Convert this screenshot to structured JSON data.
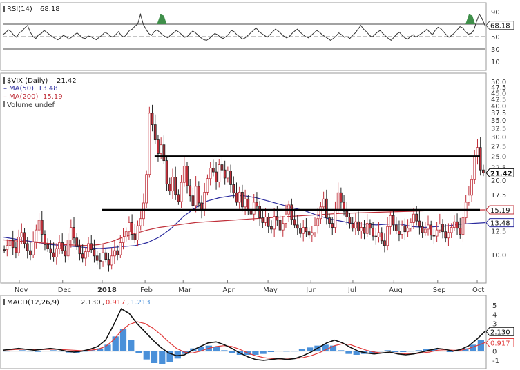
{
  "chart_data": [
    {
      "type": "line",
      "panel": "rsi",
      "title": "RSI(14) 68.18",
      "legend_label": "RSI(14)",
      "value": 68.18,
      "value_label": "68.18",
      "yticks": [
        90,
        70,
        50,
        30,
        10
      ],
      "ylim": [
        0,
        100
      ],
      "reference_lines": [
        70,
        50,
        30
      ],
      "series": [
        {
          "values": [
            53,
            56,
            61,
            58,
            52,
            49,
            56,
            59,
            64,
            68,
            57,
            50,
            47,
            53,
            55,
            60,
            57,
            53,
            50,
            47,
            45,
            48,
            52,
            50,
            46,
            49,
            53,
            56,
            52,
            48,
            47,
            51,
            50,
            47,
            45,
            49,
            52,
            57,
            55,
            51,
            49,
            53,
            58,
            52,
            49,
            54,
            60,
            62,
            67,
            70,
            86,
            70,
            62,
            55,
            52,
            58,
            61,
            57,
            53,
            50,
            48,
            53,
            56,
            60,
            57,
            53,
            49,
            50,
            55,
            59,
            56,
            52,
            48,
            45,
            44,
            47,
            51,
            55,
            53,
            49,
            47,
            50,
            54,
            60,
            58,
            53,
            50,
            46,
            48,
            52,
            56,
            60,
            64,
            58,
            55,
            52,
            49,
            53,
            58,
            62,
            59,
            55,
            51,
            48,
            50,
            55,
            59,
            62,
            57,
            53,
            50,
            48,
            52,
            56,
            60,
            57,
            53,
            50,
            47,
            44,
            47,
            51,
            56,
            53,
            49,
            50,
            47,
            52,
            56,
            62,
            68,
            62,
            58,
            53,
            49,
            53,
            57,
            60,
            55,
            51,
            47,
            44,
            49,
            54,
            57,
            52,
            48,
            46,
            50,
            53,
            49,
            52,
            55,
            58,
            62,
            57,
            53,
            60,
            65,
            63,
            58,
            53,
            49,
            52,
            56,
            61,
            66,
            64,
            58,
            54,
            55,
            60,
            74,
            86,
            79,
            68.18
          ]
        }
      ],
      "highlights": [
        {
          "position": 0.33,
          "peak": 86
        },
        {
          "position": 0.97,
          "peak": 86
        }
      ]
    },
    {
      "type": "candlestick",
      "panel": "price",
      "title": "$VIX (Daily) 21.42",
      "legend_label": "$VIX (Daily)",
      "last": 21.42,
      "last_label": "21.42",
      "yticks": [
        50.0,
        47.5,
        45.0,
        42.5,
        40.0,
        37.5,
        35.0,
        32.5,
        30.0,
        27.5,
        25.0,
        22.5,
        20.0,
        17.5,
        15.0,
        12.5,
        10.0
      ],
      "ytick_labels": [
        "50.0",
        "47.5",
        "45.0",
        "42.5",
        "40.0",
        "37.5",
        "35.0",
        "32.5",
        "30.0",
        "27.5",
        "25.0",
        "22.5",
        "20.0",
        "17.5",
        "15.0",
        "12.5",
        "10.0"
      ],
      "ylim": [
        7.9,
        52
      ],
      "scale": "log",
      "xticks": [
        {
          "label": "Nov",
          "position": 0.04
        },
        {
          "label": "Dec",
          "position": 0.13
        },
        {
          "label": "2018",
          "position": 0.212
        },
        {
          "label": "Feb",
          "position": 0.301
        },
        {
          "label": "Mar",
          "position": 0.38
        },
        {
          "label": "Apr",
          "position": 0.472
        },
        {
          "label": "May",
          "position": 0.556
        },
        {
          "label": "Jun",
          "position": 0.645
        },
        {
          "label": "Jul",
          "position": 0.732
        },
        {
          "label": "Aug",
          "position": 0.817
        },
        {
          "label": "Sep",
          "position": 0.908
        },
        {
          "label": "Oct",
          "position": 0.99
        }
      ],
      "close": [
        10.5,
        10.9,
        11.4,
        10.7,
        10.2,
        11.8,
        12.3,
        11.1,
        10.4,
        10.0,
        11.3,
        12.6,
        13.8,
        12.1,
        11.0,
        10.6,
        10.2,
        9.8,
        10.6,
        11.2,
        10.4,
        9.9,
        11.5,
        12.9,
        11.7,
        10.8,
        10.1,
        9.7,
        10.3,
        11.1,
        10.5,
        9.9,
        9.5,
        9.4,
        10.2,
        9.6,
        9.1,
        9.9,
        10.4,
        10.0,
        11.2,
        11.8,
        12.4,
        13.5,
        12.1,
        11.5,
        13.1,
        14.0,
        16.2,
        21.1,
        37.3,
        33.5,
        29.1,
        25.6,
        27.8,
        24.0,
        19.3,
        18.1,
        20.6,
        17.5,
        16.4,
        19.6,
        22.8,
        19.0,
        17.3,
        15.8,
        18.9,
        16.2,
        15.1,
        17.9,
        20.3,
        22.4,
        21.6,
        19.7,
        23.1,
        22.0,
        20.4,
        21.8,
        19.2,
        17.8,
        16.3,
        17.9,
        15.6,
        16.8,
        15.2,
        14.6,
        16.3,
        15.7,
        14.1,
        13.5,
        14.2,
        13.0,
        12.7,
        14.3,
        13.8,
        12.6,
        13.4,
        14.6,
        15.9,
        13.9,
        13.2,
        12.8,
        12.2,
        12.9,
        12.4,
        12.0,
        12.3,
        13.1,
        14.0,
        15.6,
        16.8,
        14.1,
        13.4,
        12.9,
        15.2,
        17.8,
        16.3,
        15.0,
        14.2,
        13.4,
        12.8,
        13.6,
        12.5,
        12.9,
        12.2,
        13.4,
        12.8,
        11.9,
        11.8,
        12.3,
        11.4,
        10.9,
        13.0,
        14.4,
        13.2,
        12.5,
        12.1,
        13.1,
        12.4,
        12.8,
        13.5,
        14.6,
        13.7,
        13.0,
        12.3,
        12.7,
        13.2,
        12.0,
        11.9,
        12.6,
        13.3,
        12.4,
        11.7,
        12.3,
        12.9,
        13.6,
        12.8,
        12.1,
        14.1,
        16.3,
        17.4,
        20.1,
        24.9,
        27.1,
        22.0,
        21.42
      ],
      "highlights": [
        {
          "label": "25.0",
          "value": 25.0,
          "start_position": 0.315,
          "end_position": 0.99
        },
        {
          "label": "15.19",
          "value": 15.19,
          "start_position": 0.205,
          "end_position": 0.99
        }
      ],
      "series": [
        {
          "name": "MA(50)",
          "legend_value": "13.48",
          "color": "#2b2b9e",
          "values": [
            11.8,
            11.6,
            11.4,
            11.2,
            11.0,
            10.9,
            10.8,
            10.7,
            10.6,
            10.7,
            10.8,
            10.9,
            11.2,
            11.8,
            12.8,
            14.3,
            15.5,
            16.5,
            17.0,
            17.3,
            17.3,
            17.0,
            16.5,
            16.0,
            15.5,
            15.1,
            14.5,
            14.0,
            13.7,
            13.4,
            13.3,
            13.2,
            13.3,
            13.3,
            13.0,
            12.9,
            13.0,
            13.1,
            13.3,
            13.4,
            13.48
          ]
        },
        {
          "name": "MA(200)",
          "legend_value": "15.19",
          "color": "#c0303a",
          "values": [
            11.5,
            11.4,
            11.3,
            11.2,
            11.1,
            11.0,
            10.95,
            10.9,
            11.0,
            11.3,
            11.8,
            12.2,
            12.6,
            12.9,
            13.1,
            13.3,
            13.5,
            13.6,
            13.7,
            13.8,
            13.9,
            14.0,
            14.1,
            14.2,
            14.3,
            14.4,
            14.5,
            14.6,
            14.7,
            14.75,
            14.8,
            14.85,
            14.9,
            14.95,
            15.0,
            15.05,
            15.1,
            15.12,
            15.15,
            15.17,
            15.19
          ]
        },
        {
          "name": "Volume undef"
        }
      ]
    },
    {
      "type": "line",
      "panel": "macd",
      "title": "MACD(12,26,9) 2.130, 0.917, 1.213",
      "legend_label": "MACD(12,26,9)",
      "legend_values": [
        "2.130",
        "0.917",
        "1.213"
      ],
      "yticks": [
        5,
        4,
        3,
        2,
        1,
        0,
        -1
      ],
      "ylim": [
        -1.6,
        5.6
      ],
      "value_labels": [
        {
          "label": "2.130",
          "value": 2.13,
          "series": "MACD"
        },
        {
          "label": "0.917",
          "value": 0.917,
          "series": "Signal"
        }
      ],
      "series": [
        {
          "name": "MACD",
          "color": "#111111",
          "values": [
            0.1,
            0.2,
            0.3,
            0.2,
            0.1,
            0.2,
            0.3,
            0.2,
            0.0,
            -0.1,
            0.0,
            0.2,
            0.5,
            1.2,
            2.8,
            4.6,
            4.1,
            3.0,
            2.1,
            1.2,
            0.4,
            -0.2,
            -0.5,
            -0.4,
            0.1,
            0.5,
            0.9,
            1.0,
            0.7,
            0.3,
            -0.2,
            -0.6,
            -0.9,
            -1.0,
            -0.9,
            -0.8,
            -0.9,
            -0.8,
            -0.5,
            -0.1,
            0.4,
            0.9,
            1.2,
            0.9,
            0.4,
            0.0,
            -0.2,
            -0.3,
            -0.2,
            -0.1,
            -0.3,
            -0.4,
            -0.3,
            -0.1,
            0.1,
            0.3,
            0.2,
            0.0,
            0.2,
            0.6,
            1.3,
            2.13
          ]
        },
        {
          "name": "Signal",
          "color": "#e03a3a",
          "values": [
            0.1,
            0.15,
            0.2,
            0.2,
            0.18,
            0.18,
            0.2,
            0.2,
            0.15,
            0.1,
            0.05,
            0.1,
            0.2,
            0.5,
            1.2,
            2.2,
            2.9,
            3.2,
            3.0,
            2.5,
            1.8,
            1.0,
            0.3,
            -0.1,
            -0.2,
            0.0,
            0.3,
            0.5,
            0.6,
            0.5,
            0.2,
            -0.2,
            -0.5,
            -0.7,
            -0.8,
            -0.85,
            -0.85,
            -0.8,
            -0.7,
            -0.5,
            -0.2,
            0.2,
            0.6,
            0.8,
            0.7,
            0.4,
            0.1,
            -0.1,
            -0.2,
            -0.2,
            -0.2,
            -0.3,
            -0.3,
            -0.2,
            -0.1,
            0.1,
            0.15,
            0.1,
            0.1,
            0.3,
            0.6,
            0.917
          ]
        },
        {
          "name": "Histogram",
          "color": "#4a90d9",
          "values": [
            0.0,
            0.05,
            0.1,
            0.0,
            -0.08,
            0.02,
            0.1,
            0.0,
            -0.15,
            -0.2,
            -0.05,
            0.1,
            0.3,
            0.7,
            1.6,
            2.4,
            1.2,
            -0.2,
            -0.9,
            -1.3,
            -1.4,
            -1.2,
            -0.8,
            -0.3,
            0.3,
            0.5,
            0.6,
            0.5,
            0.1,
            -0.2,
            -0.4,
            -0.4,
            -0.4,
            -0.3,
            -0.1,
            0.05,
            -0.05,
            0.0,
            0.2,
            0.4,
            0.6,
            0.7,
            0.6,
            0.1,
            -0.3,
            -0.4,
            -0.3,
            -0.2,
            0.0,
            0.1,
            -0.1,
            -0.1,
            0.0,
            0.1,
            0.2,
            0.2,
            0.05,
            -0.1,
            0.1,
            0.3,
            0.7,
            1.213
          ]
        }
      ]
    }
  ]
}
